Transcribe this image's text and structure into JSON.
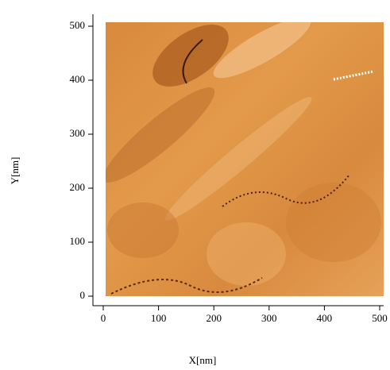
{
  "chart_data": {
    "type": "image",
    "xlabel": "X[nm]",
    "ylabel": "Y[nm]",
    "xlim": [
      0,
      500
    ],
    "ylim": [
      0,
      500
    ],
    "xticks": [
      0,
      100,
      200,
      300,
      400,
      500
    ],
    "yticks": [
      0,
      100,
      200,
      300,
      400,
      500
    ]
  }
}
